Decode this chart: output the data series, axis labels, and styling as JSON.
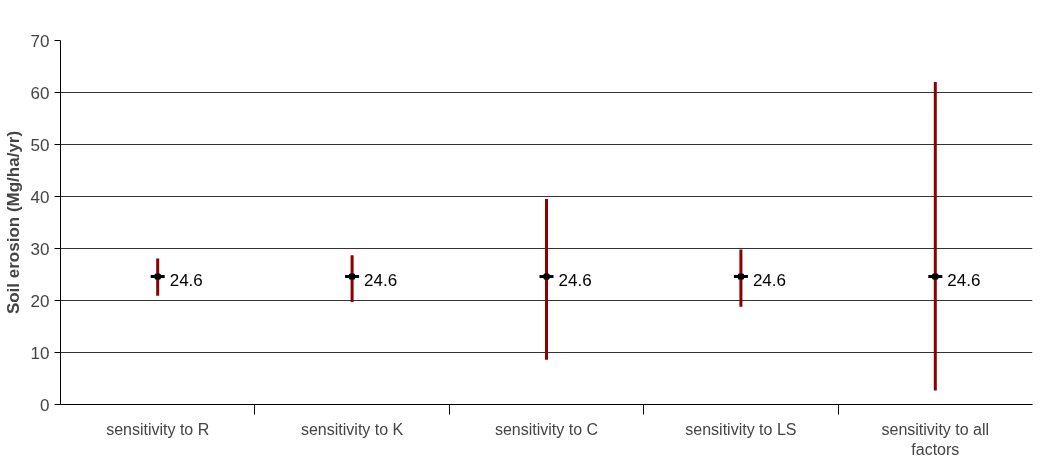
{
  "chart_data": {
    "type": "scatter",
    "ylabel": "Soil erosion (Mg/ha/yr)",
    "categories": [
      "sensitivity to R",
      "sensitivity to K",
      "sensitivity to C",
      "sensitivity to LS",
      "sensitivity to all factors"
    ],
    "series": [
      {
        "color": "#000000",
        "values": [
          24.6,
          24.6,
          24.6,
          24.6,
          24.6
        ],
        "errors": [
          [
            20.9,
            28.1
          ],
          [
            19.7,
            28.7
          ],
          [
            8.6,
            39.5
          ],
          [
            18.8,
            29.8
          ],
          [
            2.7,
            62.0
          ]
        ]
      }
    ],
    "data_labels": true,
    "ylim": [
      0,
      70
    ],
    "yticks": [
      0,
      10,
      20,
      30,
      40,
      50,
      60,
      70
    ],
    "grid": "y"
  }
}
